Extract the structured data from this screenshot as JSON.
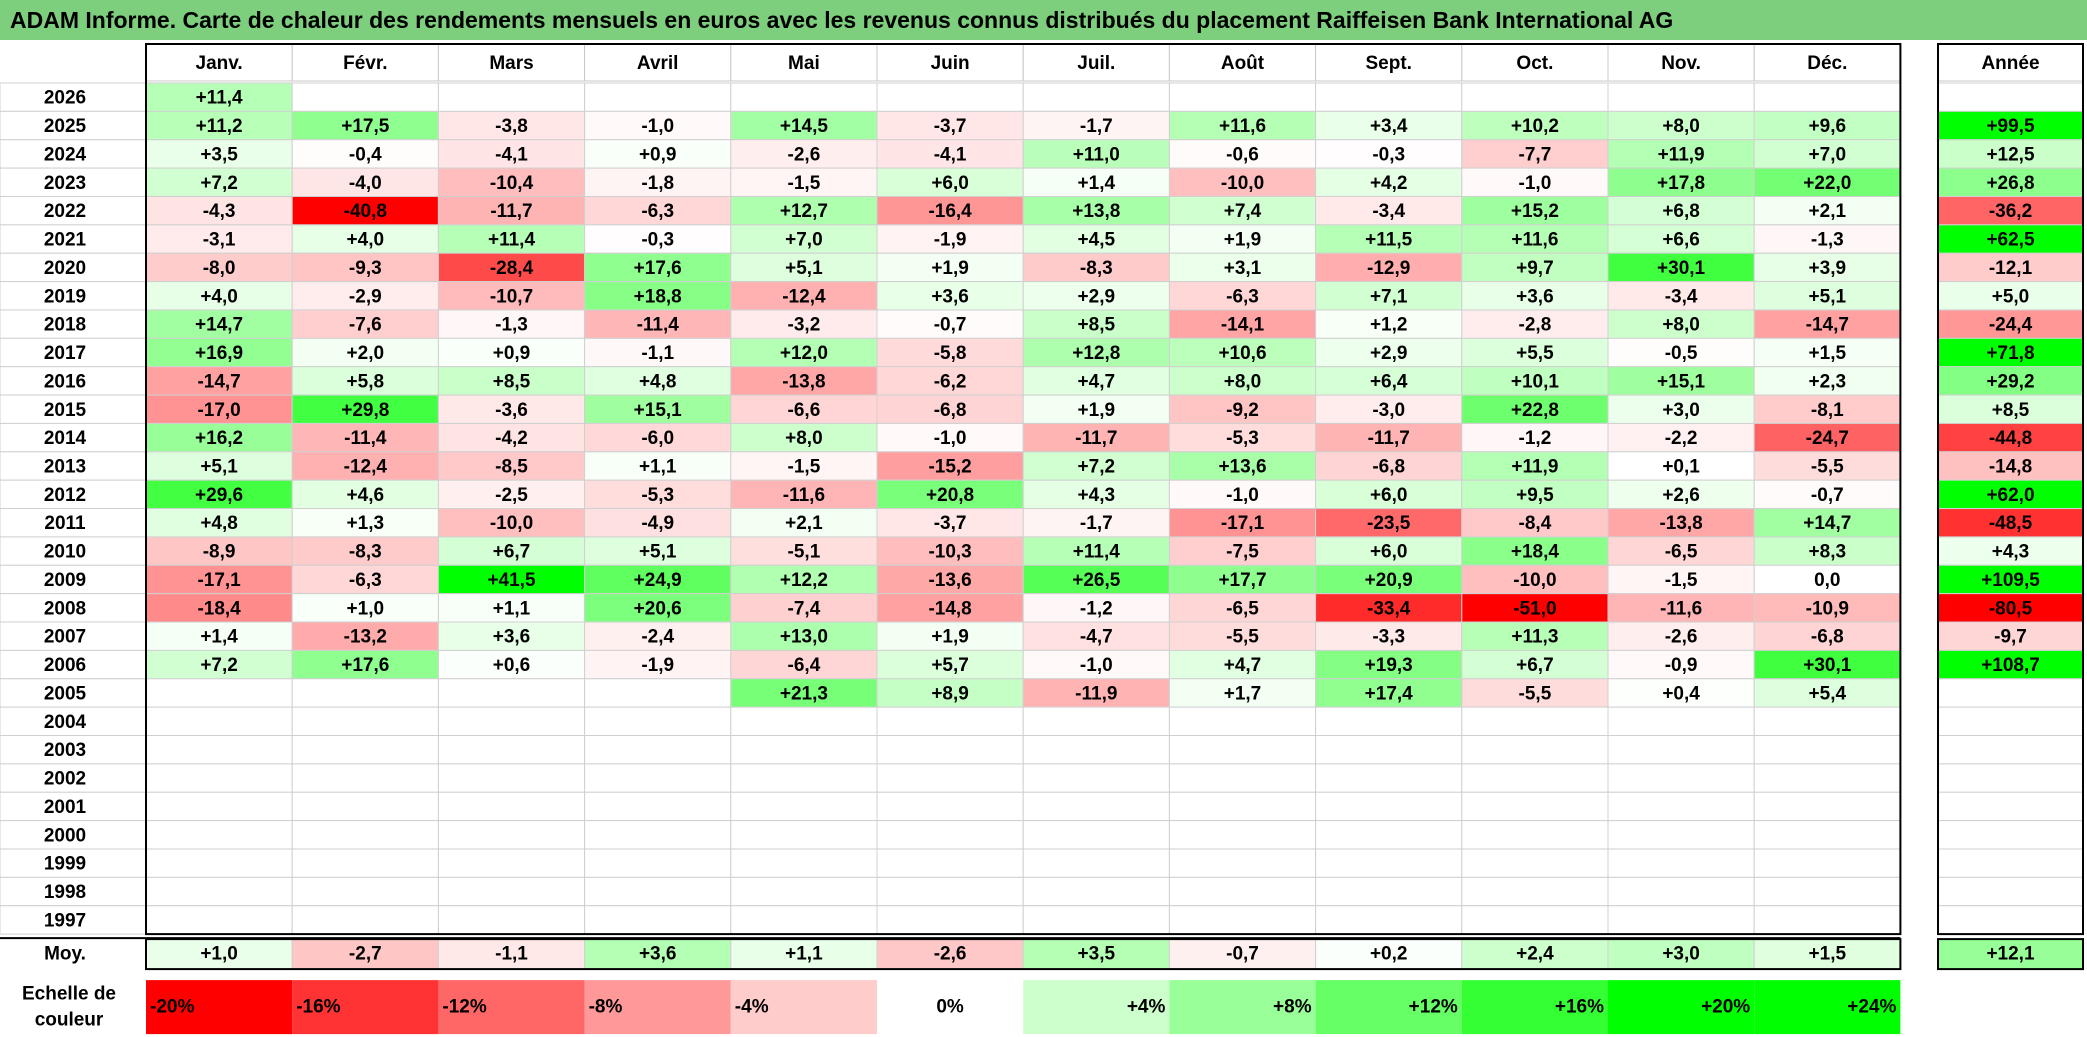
{
  "title": "ADAM Informe. Carte de chaleur des rendements mensuels en euros avec les revenus connus distribués du placement Raiffeisen Bank International AG",
  "chart_data": {
    "type": "heatmap",
    "months": [
      "Janv.",
      "Févr.",
      "Mars",
      "Avril",
      "Mai",
      "Juin",
      "Juil.",
      "Août",
      "Sept.",
      "Oct.",
      "Nov.",
      "Déc."
    ],
    "year_header": "Année",
    "rows": [
      {
        "year": "2026",
        "values": [
          "+11,4",
          "",
          "",
          "",
          "",
          "",
          "",
          "",
          "",
          "",
          "",
          ""
        ],
        "annual": ""
      },
      {
        "year": "2025",
        "values": [
          "+11,2",
          "+17,5",
          "-3,8",
          "-1,0",
          "+14,5",
          "-3,7",
          "-1,7",
          "+11,6",
          "+3,4",
          "+10,2",
          "+8,0",
          "+9,6"
        ],
        "annual": "+99,5"
      },
      {
        "year": "2024",
        "values": [
          "+3,5",
          "-0,4",
          "-4,1",
          "+0,9",
          "-2,6",
          "-4,1",
          "+11,0",
          "-0,6",
          "-0,3",
          "-7,7",
          "+11,9",
          "+7,0"
        ],
        "annual": "+12,5"
      },
      {
        "year": "2023",
        "values": [
          "+7,2",
          "-4,0",
          "-10,4",
          "-1,8",
          "-1,5",
          "+6,0",
          "+1,4",
          "-10,0",
          "+4,2",
          "-1,0",
          "+17,8",
          "+22,0"
        ],
        "annual": "+26,8"
      },
      {
        "year": "2022",
        "values": [
          "-4,3",
          "-40,8",
          "-11,7",
          "-6,3",
          "+12,7",
          "-16,4",
          "+13,8",
          "+7,4",
          "-3,4",
          "+15,2",
          "+6,8",
          "+2,1"
        ],
        "annual": "-36,2"
      },
      {
        "year": "2021",
        "values": [
          "-3,1",
          "+4,0",
          "+11,4",
          "-0,3",
          "+7,0",
          "-1,9",
          "+4,5",
          "+1,9",
          "+11,5",
          "+11,6",
          "+6,6",
          "-1,3"
        ],
        "annual": "+62,5"
      },
      {
        "year": "2020",
        "values": [
          "-8,0",
          "-9,3",
          "-28,4",
          "+17,6",
          "+5,1",
          "+1,9",
          "-8,3",
          "+3,1",
          "-12,9",
          "+9,7",
          "+30,1",
          "+3,9"
        ],
        "annual": "-12,1"
      },
      {
        "year": "2019",
        "values": [
          "+4,0",
          "-2,9",
          "-10,7",
          "+18,8",
          "-12,4",
          "+3,6",
          "+2,9",
          "-6,3",
          "+7,1",
          "+3,6",
          "-3,4",
          "+5,1"
        ],
        "annual": "+5,0"
      },
      {
        "year": "2018",
        "values": [
          "+14,7",
          "-7,6",
          "-1,3",
          "-11,4",
          "-3,2",
          "-0,7",
          "+8,5",
          "-14,1",
          "+1,2",
          "-2,8",
          "+8,0",
          "-14,7"
        ],
        "annual": "-24,4"
      },
      {
        "year": "2017",
        "values": [
          "+16,9",
          "+2,0",
          "+0,9",
          "-1,1",
          "+12,0",
          "-5,8",
          "+12,8",
          "+10,6",
          "+2,9",
          "+5,5",
          "-0,5",
          "+1,5"
        ],
        "annual": "+71,8"
      },
      {
        "year": "2016",
        "values": [
          "-14,7",
          "+5,8",
          "+8,5",
          "+4,8",
          "-13,8",
          "-6,2",
          "+4,7",
          "+8,0",
          "+6,4",
          "+10,1",
          "+15,1",
          "+2,3"
        ],
        "annual": "+29,2"
      },
      {
        "year": "2015",
        "values": [
          "-17,0",
          "+29,8",
          "-3,6",
          "+15,1",
          "-6,6",
          "-6,8",
          "+1,9",
          "-9,2",
          "-3,0",
          "+22,8",
          "+3,0",
          "-8,1"
        ],
        "annual": "+8,5"
      },
      {
        "year": "2014",
        "values": [
          "+16,2",
          "-11,4",
          "-4,2",
          "-6,0",
          "+8,0",
          "-1,0",
          "-11,7",
          "-5,3",
          "-11,7",
          "-1,2",
          "-2,2",
          "-24,7"
        ],
        "annual": "-44,8"
      },
      {
        "year": "2013",
        "values": [
          "+5,1",
          "-12,4",
          "-8,5",
          "+1,1",
          "-1,5",
          "-15,2",
          "+7,2",
          "+13,6",
          "-6,8",
          "+11,9",
          "+0,1",
          "-5,5"
        ],
        "annual": "-14,8"
      },
      {
        "year": "2012",
        "values": [
          "+29,6",
          "+4,6",
          "-2,5",
          "-5,3",
          "-11,6",
          "+20,8",
          "+4,3",
          "-1,0",
          "+6,0",
          "+9,5",
          "+2,6",
          "-0,7"
        ],
        "annual": "+62,0"
      },
      {
        "year": "2011",
        "values": [
          "+4,8",
          "+1,3",
          "-10,0",
          "-4,9",
          "+2,1",
          "-3,7",
          "-1,7",
          "-17,1",
          "-23,5",
          "-8,4",
          "-13,8",
          "+14,7"
        ],
        "annual": "-48,5"
      },
      {
        "year": "2010",
        "values": [
          "-8,9",
          "-8,3",
          "+6,7",
          "+5,1",
          "-5,1",
          "-10,3",
          "+11,4",
          "-7,5",
          "+6,0",
          "+18,4",
          "-6,5",
          "+8,3"
        ],
        "annual": "+4,3"
      },
      {
        "year": "2009",
        "values": [
          "-17,1",
          "-6,3",
          "+41,5",
          "+24,9",
          "+12,2",
          "-13,6",
          "+26,5",
          "+17,7",
          "+20,9",
          "-10,0",
          "-1,5",
          "0,0"
        ],
        "annual": "+109,5"
      },
      {
        "year": "2008",
        "values": [
          "-18,4",
          "+1,0",
          "+1,1",
          "+20,6",
          "-7,4",
          "-14,8",
          "-1,2",
          "-6,5",
          "-33,4",
          "-51,0",
          "-11,6",
          "-10,9"
        ],
        "annual": "-80,5"
      },
      {
        "year": "2007",
        "values": [
          "+1,4",
          "-13,2",
          "+3,6",
          "-2,4",
          "+13,0",
          "+1,9",
          "-4,7",
          "-5,5",
          "-3,3",
          "+11,3",
          "-2,6",
          "-6,8"
        ],
        "annual": "-9,7"
      },
      {
        "year": "2006",
        "values": [
          "+7,2",
          "+17,6",
          "+0,6",
          "-1,9",
          "-6,4",
          "+5,7",
          "-1,0",
          "+4,7",
          "+19,3",
          "+6,7",
          "-0,9",
          "+30,1"
        ],
        "annual": "+108,7"
      },
      {
        "year": "2005",
        "values": [
          "",
          "",
          "",
          "",
          "+21,3",
          "+8,9",
          "-11,9",
          "+1,7",
          "+17,4",
          "-5,5",
          "+0,4",
          "+5,4"
        ],
        "annual": ""
      },
      {
        "year": "2004",
        "values": [
          "",
          "",
          "",
          "",
          "",
          "",
          "",
          "",
          "",
          "",
          "",
          ""
        ],
        "annual": ""
      },
      {
        "year": "2003",
        "values": [
          "",
          "",
          "",
          "",
          "",
          "",
          "",
          "",
          "",
          "",
          "",
          ""
        ],
        "annual": ""
      },
      {
        "year": "2002",
        "values": [
          "",
          "",
          "",
          "",
          "",
          "",
          "",
          "",
          "",
          "",
          "",
          ""
        ],
        "annual": ""
      },
      {
        "year": "2001",
        "values": [
          "",
          "",
          "",
          "",
          "",
          "",
          "",
          "",
          "",
          "",
          "",
          ""
        ],
        "annual": ""
      },
      {
        "year": "2000",
        "values": [
          "",
          "",
          "",
          "",
          "",
          "",
          "",
          "",
          "",
          "",
          "",
          ""
        ],
        "annual": ""
      },
      {
        "year": "1999",
        "values": [
          "",
          "",
          "",
          "",
          "",
          "",
          "",
          "",
          "",
          "",
          "",
          ""
        ],
        "annual": ""
      },
      {
        "year": "1998",
        "values": [
          "",
          "",
          "",
          "",
          "",
          "",
          "",
          "",
          "",
          "",
          "",
          ""
        ],
        "annual": ""
      },
      {
        "year": "1997",
        "values": [
          "",
          "",
          "",
          "",
          "",
          "",
          "",
          "",
          "",
          "",
          "",
          ""
        ],
        "annual": ""
      }
    ],
    "average": {
      "label": "Moy.",
      "values": [
        "+1,0",
        "-2,7",
        "-1,1",
        "+3,6",
        "+1,1",
        "-2,6",
        "+3,5",
        "-0,7",
        "+0,2",
        "+2,4",
        "+3,0",
        "+1,5"
      ],
      "annual": "+12,1"
    },
    "color_scale": {
      "label": [
        "Echelle de",
        "couleur"
      ],
      "steps": [
        {
          "label": "-20%",
          "value": -20
        },
        {
          "label": "-16%",
          "value": -16
        },
        {
          "label": "-12%",
          "value": -12
        },
        {
          "label": "-8%",
          "value": -8
        },
        {
          "label": "-4%",
          "value": -4
        },
        {
          "label": "0%",
          "value": 0
        },
        {
          "label": "+4%",
          "value": 4
        },
        {
          "label": "+8%",
          "value": 8
        },
        {
          "label": "+12%",
          "value": 12
        },
        {
          "label": "+16%",
          "value": 16
        },
        {
          "label": "+20%",
          "value": 20
        },
        {
          "label": "+24%",
          "value": 24
        }
      ]
    },
    "colors": {
      "negative_max": "#ff0000",
      "neutral": "#ffffff",
      "positive_max": "#00ff00",
      "title_background": "#7dce7d"
    }
  }
}
